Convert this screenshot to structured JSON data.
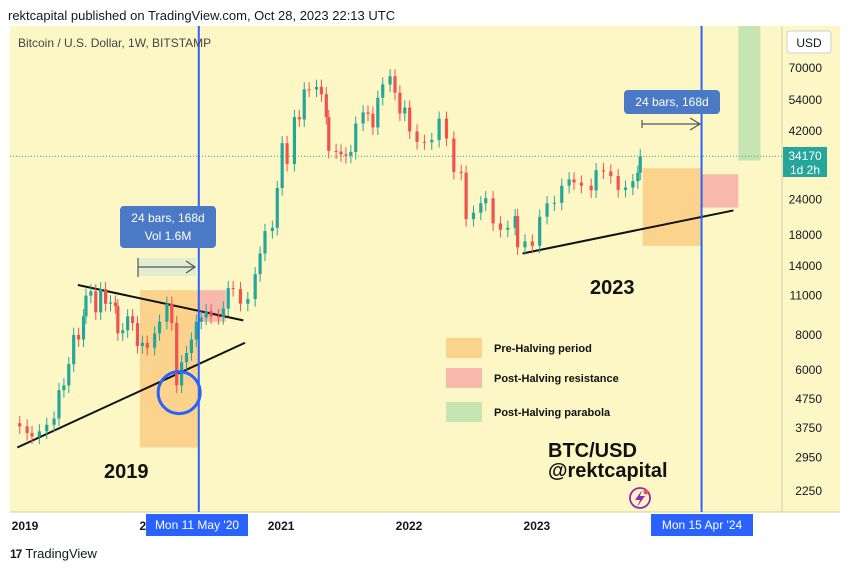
{
  "header": {
    "publisher_line": "rektcapital published on TradingView.com, Oct 28, 2023 22:13 UTC"
  },
  "footer": {
    "brand": "TradingView",
    "logo_glyph": "17"
  },
  "colors": {
    "background": "#fdf7c5",
    "price_axis_bg": "#fdf7c5",
    "candle_up": "#26a69a",
    "candle_down": "#ef5350",
    "pre_halving": "#fbd38d",
    "post_halving_resistance": "#f8b9ab",
    "post_halving_parabola": "#c6e5b2",
    "halving_line": "#2962ff",
    "label_box": "#4a79c5",
    "price_tag": "#26a69a"
  },
  "chart_data": {
    "type": "candlestick",
    "title": "Bitcoin / U.S. Dollar, 1W, BITSTAMP",
    "y_axis": {
      "unit_label": "USD",
      "scale": "log",
      "ticks": [
        70000,
        54000,
        42000,
        34170,
        24000,
        18000,
        14000,
        11000,
        8000,
        6000,
        4750,
        3750,
        2950,
        2250
      ]
    },
    "x_axis": {
      "ticks": [
        "2019",
        "2020",
        "2021",
        "2022",
        "2023"
      ]
    },
    "current_price": {
      "value": "34170",
      "countdown": "1d 2h"
    },
    "halving_lines": [
      {
        "label": "Mon 11 May '20",
        "date": "2020-05-11"
      },
      {
        "label": "Mon 15 Apr '24",
        "date": "2024-04-15"
      }
    ],
    "measure_labels": [
      {
        "bars": "24 bars, 168d",
        "vol": "Vol 1.6M"
      },
      {
        "bars": "24 bars, 168d"
      }
    ],
    "annotations": {
      "cycle_2019": "2019",
      "cycle_2023": "2023",
      "signature_pair": "BTC/USD",
      "signature_handle": "@rektcapital"
    },
    "legend": {
      "placement": "center-right",
      "items": [
        {
          "name": "Pre-Halving period",
          "color": "#fbd38d"
        },
        {
          "name": "Post-Halving resistance",
          "color": "#f8b9ab"
        },
        {
          "name": "Post-Halving parabola",
          "color": "#c6e5b2"
        }
      ]
    },
    "shaded_zones": [
      {
        "name": "Pre-Halving period",
        "start": "2019-11-25",
        "end": "2020-05-11",
        "low": 3200,
        "high": 11500
      },
      {
        "name": "Post-Halving resistance",
        "start": "2020-05-11",
        "end": "2020-07-27",
        "low": 8900,
        "high": 11500
      },
      {
        "name": "Pre-Halving period",
        "start": "2023-10-30",
        "end": "2024-04-15",
        "low": 16500,
        "high": 31000
      },
      {
        "name": "Post-Halving resistance",
        "start": "2024-04-15",
        "end": "2024-07-29",
        "low": 22500,
        "high": 29500
      },
      {
        "name": "Post-Halving parabola",
        "start": "2024-07-29",
        "end": "2024-09-30",
        "low": 33000,
        "high": 500000
      }
    ],
    "trendlines": [
      {
        "points": [
          [
            "2018-12-10",
            3200
          ],
          [
            "2020-09-20",
            7500
          ]
        ]
      },
      {
        "points": [
          [
            "2019-06-01",
            12000
          ],
          [
            "2020-09-15",
            9000
          ]
        ]
      },
      {
        "points": [
          [
            "2022-11-21",
            15500
          ],
          [
            "2024-07-15",
            22000
          ]
        ]
      }
    ],
    "highlight_circle": {
      "date": "2020-03-16",
      "price": 5000
    },
    "series": [
      {
        "name": "BTC/USD weekly close",
        "points": [
          [
            "2018-12-03",
            3900
          ],
          [
            "2018-12-17",
            3800
          ],
          [
            "2019-01-07",
            3600
          ],
          [
            "2019-01-21",
            3500
          ],
          [
            "2019-02-11",
            3650
          ],
          [
            "2019-03-04",
            3850
          ],
          [
            "2019-03-25",
            4050
          ],
          [
            "2019-04-08",
            5100
          ],
          [
            "2019-04-22",
            5300
          ],
          [
            "2019-05-06",
            6300
          ],
          [
            "2019-05-20",
            8000
          ],
          [
            "2019-06-03",
            7700
          ],
          [
            "2019-06-17",
            9300
          ],
          [
            "2019-06-24",
            11000
          ],
          [
            "2019-07-08",
            11400
          ],
          [
            "2019-07-22",
            9600
          ],
          [
            "2019-08-05",
            11600
          ],
          [
            "2019-08-19",
            10300
          ],
          [
            "2019-09-02",
            10400
          ],
          [
            "2019-09-16",
            10100
          ],
          [
            "2019-09-23",
            8100
          ],
          [
            "2019-10-07",
            8300
          ],
          [
            "2019-10-21",
            9300
          ],
          [
            "2019-11-04",
            8800
          ],
          [
            "2019-11-18",
            7300
          ],
          [
            "2019-12-02",
            7500
          ],
          [
            "2019-12-16",
            7200
          ],
          [
            "2020-01-06",
            8100
          ],
          [
            "2020-01-20",
            8900
          ],
          [
            "2020-02-10",
            10300
          ],
          [
            "2020-02-24",
            8800
          ],
          [
            "2020-03-09",
            5300
          ],
          [
            "2020-03-23",
            6400
          ],
          [
            "2020-04-06",
            6900
          ],
          [
            "2020-04-20",
            7700
          ],
          [
            "2020-05-04",
            8900
          ],
          [
            "2020-05-18",
            9200
          ],
          [
            "2020-06-01",
            9700
          ],
          [
            "2020-06-15",
            9300
          ],
          [
            "2020-07-06",
            9250
          ],
          [
            "2020-07-20",
            9900
          ],
          [
            "2020-08-03",
            11700
          ],
          [
            "2020-08-17",
            11600
          ],
          [
            "2020-09-07",
            10300
          ],
          [
            "2020-09-28",
            10700
          ],
          [
            "2020-10-19",
            13100
          ],
          [
            "2020-11-02",
            15500
          ],
          [
            "2020-11-16",
            18600
          ],
          [
            "2020-12-07",
            19100
          ],
          [
            "2020-12-21",
            26400
          ],
          [
            "2021-01-04",
            38000
          ],
          [
            "2021-01-18",
            32100
          ],
          [
            "2021-02-08",
            47000
          ],
          [
            "2021-02-22",
            46100
          ],
          [
            "2021-03-08",
            58900
          ],
          [
            "2021-03-22",
            58800
          ],
          [
            "2021-04-12",
            60100
          ],
          [
            "2021-04-26",
            56600
          ],
          [
            "2021-05-10",
            47000
          ],
          [
            "2021-05-17",
            35700
          ],
          [
            "2021-06-07",
            35500
          ],
          [
            "2021-06-21",
            34700
          ],
          [
            "2021-07-05",
            34300
          ],
          [
            "2021-07-19",
            35400
          ],
          [
            "2021-08-02",
            44600
          ],
          [
            "2021-08-23",
            48800
          ],
          [
            "2021-09-06",
            48300
          ],
          [
            "2021-09-20",
            43200
          ],
          [
            "2021-10-04",
            55000
          ],
          [
            "2021-10-18",
            61300
          ],
          [
            "2021-11-08",
            65500
          ],
          [
            "2021-11-22",
            57300
          ],
          [
            "2021-12-06",
            48400
          ],
          [
            "2021-12-20",
            50800
          ],
          [
            "2022-01-03",
            41800
          ],
          [
            "2022-01-24",
            38400
          ],
          [
            "2022-02-14",
            38300
          ],
          [
            "2022-03-07",
            39000
          ],
          [
            "2022-03-28",
            46400
          ],
          [
            "2022-04-18",
            39500
          ],
          [
            "2022-05-09",
            30100
          ],
          [
            "2022-05-30",
            29900
          ],
          [
            "2022-06-13",
            20500
          ],
          [
            "2022-07-04",
            21600
          ],
          [
            "2022-07-25",
            23300
          ],
          [
            "2022-08-08",
            24300
          ],
          [
            "2022-08-29",
            19800
          ],
          [
            "2022-09-19",
            18800
          ],
          [
            "2022-10-10",
            19100
          ],
          [
            "2022-10-31",
            21000
          ],
          [
            "2022-11-07",
            16300
          ],
          [
            "2022-11-28",
            17100
          ],
          [
            "2022-12-19",
            16500
          ],
          [
            "2023-01-09",
            20900
          ],
          [
            "2023-01-30",
            23300
          ],
          [
            "2023-02-20",
            23400
          ],
          [
            "2023-03-13",
            26900
          ],
          [
            "2023-04-03",
            28300
          ],
          [
            "2023-04-17",
            27600
          ],
          [
            "2023-05-08",
            26900
          ],
          [
            "2023-06-05",
            25900
          ],
          [
            "2023-06-19",
            30500
          ],
          [
            "2023-07-10",
            30200
          ],
          [
            "2023-07-31",
            29100
          ],
          [
            "2023-08-21",
            26000
          ],
          [
            "2023-09-11",
            26500
          ],
          [
            "2023-10-02",
            27900
          ],
          [
            "2023-10-16",
            29900
          ],
          [
            "2023-10-23",
            34170
          ]
        ]
      }
    ]
  }
}
